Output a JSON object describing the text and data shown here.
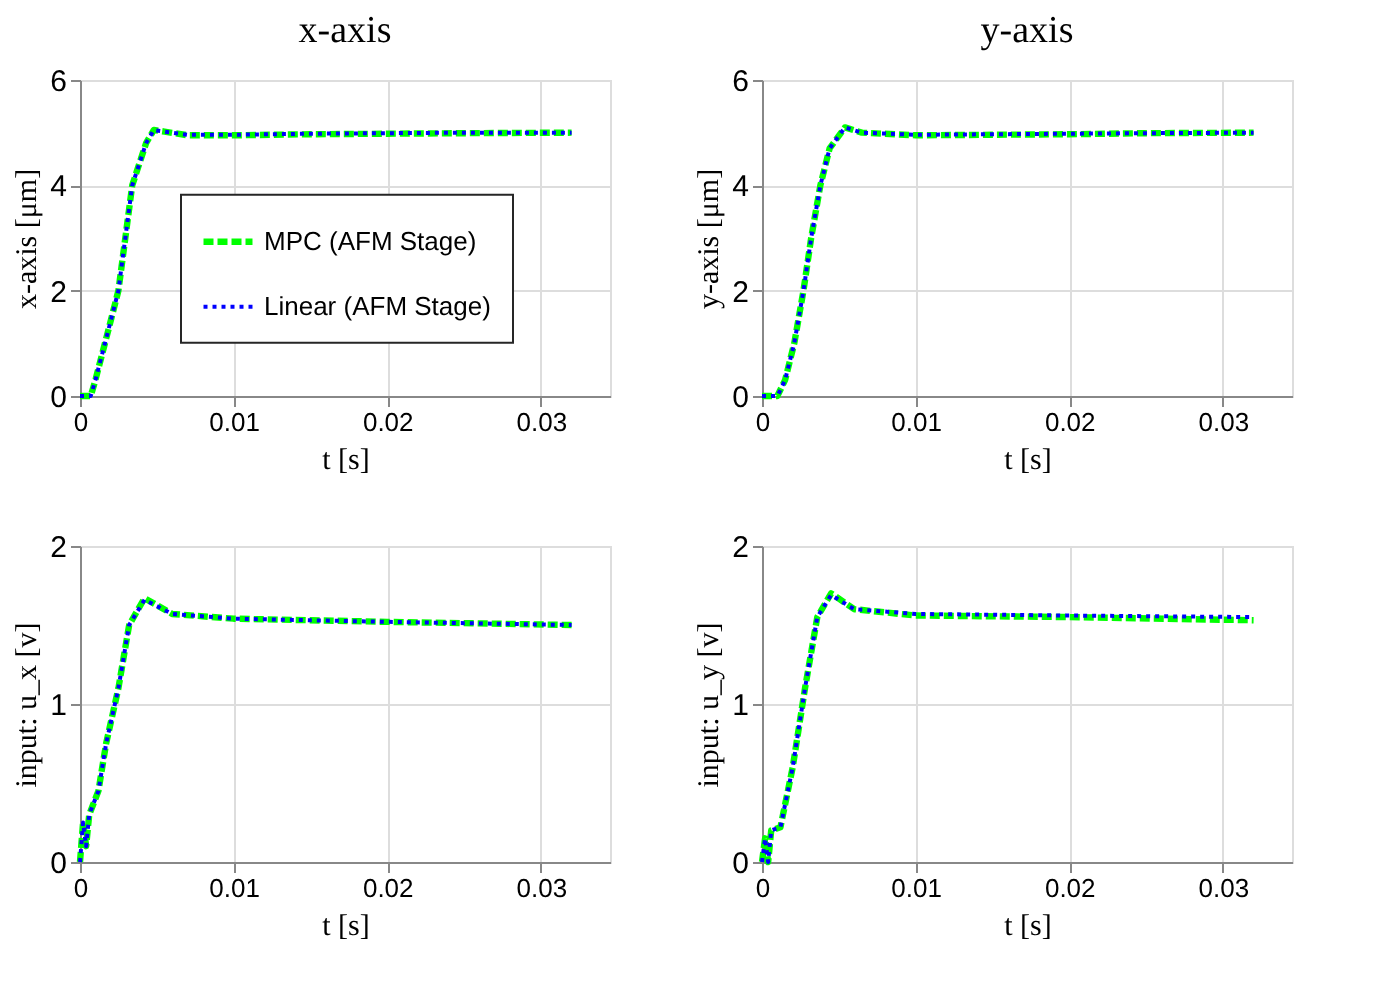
{
  "chart_data": [
    {
      "type": "line",
      "title": "x-axis",
      "xlabel": "t [s]",
      "ylabel": "x-axis [μm]",
      "xlim": [
        0,
        0.0345
      ],
      "xticks": [
        0,
        0.01,
        0.02,
        0.03
      ],
      "ylim": [
        0,
        6
      ],
      "yticks": [
        0,
        2,
        4,
        6
      ],
      "grid": true,
      "legend": "right",
      "series": [
        {
          "name": "MPC (AFM Stage)",
          "color": "#00ff00",
          "line_style": "dashed",
          "x": [
            0,
            0.0007,
            0.001,
            0.0018,
            0.0025,
            0.0034,
            0.0043,
            0.0048,
            0.0055,
            0.007,
            0.01,
            0.015,
            0.02,
            0.025,
            0.032
          ],
          "values": [
            0,
            0,
            0.3,
            1.2,
            2,
            4,
            4.8,
            5.05,
            5.02,
            4.95,
            4.95,
            4.97,
            4.98,
            4.99,
            5.0
          ]
        },
        {
          "name": "Linear (AFM Stage)",
          "color": "#0000ff",
          "line_style": "dotted",
          "x": [
            0,
            0.0007,
            0.001,
            0.0018,
            0.0025,
            0.0034,
            0.0043,
            0.0048,
            0.0055,
            0.007,
            0.01,
            0.015,
            0.02,
            0.025,
            0.032
          ],
          "values": [
            0,
            0,
            0.3,
            1.2,
            2,
            4,
            4.8,
            5.05,
            5.02,
            4.96,
            4.96,
            4.98,
            4.99,
            5.0,
            5.0
          ]
        }
      ]
    },
    {
      "type": "line",
      "title": "y-axis",
      "xlabel": "t [s]",
      "ylabel": "y-axis [μm]",
      "xlim": [
        0,
        0.0345
      ],
      "xticks": [
        0,
        0.01,
        0.02,
        0.03
      ],
      "ylim": [
        0,
        6
      ],
      "yticks": [
        0,
        2,
        4,
        6
      ],
      "grid": true,
      "series": [
        {
          "color": "#00ff00",
          "line_style": "dashed",
          "x": [
            0,
            0.001,
            0.0015,
            0.0021,
            0.0027,
            0.0032,
            0.0038,
            0.0044,
            0.0054,
            0.0065,
            0.01,
            0.015,
            0.02,
            0.025,
            0.032
          ],
          "values": [
            0,
            0,
            0.3,
            1,
            2,
            3,
            4,
            4.7,
            5.1,
            5.0,
            4.95,
            4.96,
            4.97,
            4.99,
            5.0
          ]
        },
        {
          "color": "#0000ff",
          "line_style": "dotted",
          "x": [
            0,
            0.001,
            0.0015,
            0.0021,
            0.0027,
            0.0032,
            0.0038,
            0.0044,
            0.0054,
            0.0065,
            0.01,
            0.015,
            0.02,
            0.025,
            0.032
          ],
          "values": [
            0,
            0,
            0.3,
            1,
            2,
            3,
            4,
            4.7,
            5.1,
            5.0,
            4.96,
            4.97,
            4.98,
            4.99,
            5.0
          ]
        }
      ]
    },
    {
      "type": "line",
      "xlabel": "t [s]",
      "ylabel": "input: u_x [v]",
      "xlim": [
        0,
        0.0345
      ],
      "xticks": [
        0,
        0.01,
        0.02,
        0.03
      ],
      "ylim": [
        0,
        2
      ],
      "yticks": [
        0,
        1,
        2
      ],
      "grid": true,
      "series": [
        {
          "color": "#00ff00",
          "line_style": "dashed",
          "x": [
            0,
            0.0002,
            0.0004,
            0.0006,
            0.0012,
            0.0017,
            0.0025,
            0.0032,
            0.0042,
            0.006,
            0.01,
            0.02,
            0.032
          ],
          "values": [
            0,
            0.25,
            0.1,
            0.3,
            0.45,
            0.75,
            1.1,
            1.5,
            1.67,
            1.57,
            1.54,
            1.52,
            1.5
          ]
        },
        {
          "color": "#0000ff",
          "line_style": "dotted",
          "x": [
            0,
            0.0002,
            0.0004,
            0.0006,
            0.0012,
            0.0017,
            0.0025,
            0.0032,
            0.0042,
            0.006,
            0.01,
            0.02,
            0.032
          ],
          "values": [
            0,
            0.25,
            0.1,
            0.3,
            0.45,
            0.75,
            1.1,
            1.5,
            1.66,
            1.57,
            1.54,
            1.52,
            1.5
          ]
        }
      ]
    },
    {
      "type": "line",
      "xlabel": "t [s]",
      "ylabel": "input: u_y [v]",
      "xlim": [
        0,
        0.0345
      ],
      "xticks": [
        0,
        0.01,
        0.02,
        0.03
      ],
      "ylim": [
        0,
        2
      ],
      "yticks": [
        0,
        1,
        2
      ],
      "grid": true,
      "series": [
        {
          "color": "#00ff00",
          "line_style": "dashed",
          "x": [
            0,
            0.0002,
            0.0004,
            0.0006,
            0.0012,
            0.002,
            0.0028,
            0.0036,
            0.0045,
            0.006,
            0.01,
            0.02,
            0.032
          ],
          "values": [
            0,
            0.15,
            0,
            0.2,
            0.22,
            0.6,
            1.1,
            1.55,
            1.7,
            1.6,
            1.56,
            1.55,
            1.53
          ]
        },
        {
          "color": "#0000ff",
          "line_style": "dotted",
          "x": [
            0,
            0.0002,
            0.0004,
            0.0006,
            0.0012,
            0.002,
            0.0028,
            0.0036,
            0.0045,
            0.006,
            0.01,
            0.02,
            0.032
          ],
          "values": [
            0,
            0.15,
            0,
            0.2,
            0.22,
            0.6,
            1.1,
            1.55,
            1.69,
            1.6,
            1.57,
            1.56,
            1.55
          ]
        }
      ]
    }
  ]
}
